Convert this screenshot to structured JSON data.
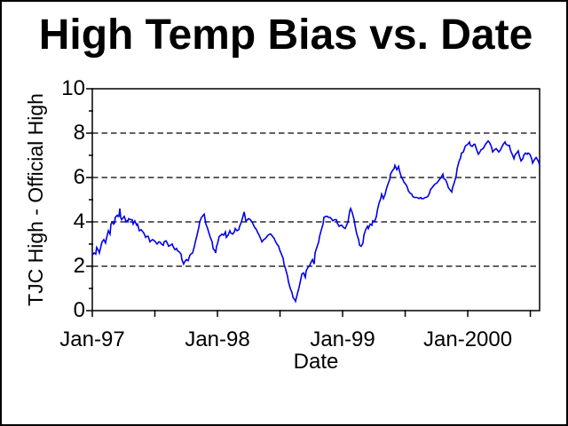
{
  "window": {
    "background": "#ffffff",
    "border_color": "#000000"
  },
  "chart_data": {
    "type": "line",
    "title": "High Temp Bias vs. Date",
    "xlabel": "Date",
    "ylabel": "TJC High - Official High",
    "x_unit": "years since Jan-1997",
    "xlim": [
      0,
      3.574
    ],
    "ylim": [
      0,
      10
    ],
    "x_ticks": [
      {
        "pos": 0,
        "label": "Jan-97"
      },
      {
        "pos": 0.5,
        "label": ""
      },
      {
        "pos": 1,
        "label": "Jan-98"
      },
      {
        "pos": 1.5,
        "label": ""
      },
      {
        "pos": 2,
        "label": "Jan-99"
      },
      {
        "pos": 2.5,
        "label": ""
      },
      {
        "pos": 3,
        "label": "Jan-2000"
      },
      {
        "pos": 3.5,
        "label": ""
      }
    ],
    "y_major_ticks": [
      0,
      2,
      4,
      6,
      8,
      10
    ],
    "y_minor_ticks": [
      1,
      3,
      5,
      7,
      9
    ],
    "gridlines_y": [
      2,
      4,
      6,
      8
    ],
    "grid_style": "horizontal dashed black",
    "legend": "none",
    "frame_color": "#000000",
    "series": [
      {
        "name": "TJC High - Official High",
        "color": "#0000E6",
        "points": [
          [
            0,
            2.5
          ],
          [
            0.014,
            2.6
          ],
          [
            0.028,
            2.55
          ],
          [
            0.035,
            2.85
          ],
          [
            0.05,
            2.7
          ],
          [
            0.057,
            2.6
          ],
          [
            0.071,
            2.95
          ],
          [
            0.078,
            3.1
          ],
          [
            0.092,
            3.2
          ],
          [
            0.106,
            3.05
          ],
          [
            0.113,
            3.25
          ],
          [
            0.128,
            3.6
          ],
          [
            0.142,
            3.45
          ],
          [
            0.149,
            3.9
          ],
          [
            0.163,
            4.0
          ],
          [
            0.17,
            3.9
          ],
          [
            0.177,
            3.95
          ],
          [
            0.184,
            4.2
          ],
          [
            0.199,
            4.3
          ],
          [
            0.206,
            4.25
          ],
          [
            0.213,
            4.25
          ],
          [
            0.22,
            4.6
          ],
          [
            0.227,
            4.2
          ],
          [
            0.234,
            4.1
          ],
          [
            0.241,
            4.15
          ],
          [
            0.248,
            4.2
          ],
          [
            0.255,
            4.25
          ],
          [
            0.27,
            4.0
          ],
          [
            0.277,
            4.05
          ],
          [
            0.284,
            4.0
          ],
          [
            0.291,
            4.15
          ],
          [
            0.305,
            4.1
          ],
          [
            0.319,
            4.1
          ],
          [
            0.326,
            3.9
          ],
          [
            0.34,
            4.05
          ],
          [
            0.355,
            3.85
          ],
          [
            0.362,
            3.9
          ],
          [
            0.376,
            3.6
          ],
          [
            0.39,
            3.65
          ],
          [
            0.397,
            3.6
          ],
          [
            0.411,
            3.5
          ],
          [
            0.426,
            3.3
          ],
          [
            0.433,
            3.35
          ],
          [
            0.447,
            3.35
          ],
          [
            0.461,
            3.1
          ],
          [
            0.468,
            3.15
          ],
          [
            0.482,
            3.2
          ],
          [
            0.496,
            3.15
          ],
          [
            0.504,
            3.1
          ],
          [
            0.518,
            3.0
          ],
          [
            0.532,
            3.1
          ],
          [
            0.539,
            3.1
          ],
          [
            0.553,
            3.0
          ],
          [
            0.567,
            2.95
          ],
          [
            0.574,
            3.1
          ],
          [
            0.589,
            3.15
          ],
          [
            0.603,
            3.0
          ],
          [
            0.61,
            2.9
          ],
          [
            0.624,
            2.95
          ],
          [
            0.638,
            3.0
          ],
          [
            0.645,
            2.9
          ],
          [
            0.66,
            2.75
          ],
          [
            0.674,
            2.8
          ],
          [
            0.681,
            2.7
          ],
          [
            0.695,
            2.65
          ],
          [
            0.709,
            2.55
          ],
          [
            0.716,
            2.3
          ],
          [
            0.73,
            2.1
          ],
          [
            0.738,
            2.2
          ],
          [
            0.752,
            2.3
          ],
          [
            0.766,
            2.25
          ],
          [
            0.78,
            2.5
          ],
          [
            0.787,
            2.55
          ],
          [
            0.801,
            2.6
          ],
          [
            0.816,
            2.9
          ],
          [
            0.823,
            3.1
          ],
          [
            0.837,
            3.4
          ],
          [
            0.851,
            3.75
          ],
          [
            0.858,
            4.0
          ],
          [
            0.872,
            4.2
          ],
          [
            0.887,
            4.3
          ],
          [
            0.894,
            4.35
          ],
          [
            0.908,
            3.9
          ],
          [
            0.922,
            3.7
          ],
          [
            0.929,
            3.55
          ],
          [
            0.943,
            3.3
          ],
          [
            0.957,
            3.1
          ],
          [
            0.965,
            2.8
          ],
          [
            0.979,
            2.7
          ],
          [
            0.986,
            2.6
          ],
          [
            0.993,
            2.9
          ],
          [
            1.0,
            3.0
          ],
          [
            1.014,
            3.35
          ],
          [
            1.028,
            3.4
          ],
          [
            1.035,
            3.45
          ],
          [
            1.05,
            3.4
          ],
          [
            1.064,
            3.55
          ],
          [
            1.071,
            3.3
          ],
          [
            1.085,
            3.4
          ],
          [
            1.099,
            3.6
          ],
          [
            1.106,
            3.5
          ],
          [
            1.121,
            3.45
          ],
          [
            1.135,
            3.55
          ],
          [
            1.142,
            3.7
          ],
          [
            1.156,
            3.6
          ],
          [
            1.17,
            3.65
          ],
          [
            1.177,
            3.8
          ],
          [
            1.191,
            4.0
          ],
          [
            1.206,
            4.3
          ],
          [
            1.213,
            4.45
          ],
          [
            1.227,
            4.05
          ],
          [
            1.241,
            4.1
          ],
          [
            1.248,
            4.15
          ],
          [
            1.262,
            4.1
          ],
          [
            1.277,
            4.0
          ],
          [
            1.284,
            3.9
          ],
          [
            1.298,
            3.75
          ],
          [
            1.312,
            3.65
          ],
          [
            1.319,
            3.55
          ],
          [
            1.333,
            3.4
          ],
          [
            1.348,
            3.2
          ],
          [
            1.355,
            3.1
          ],
          [
            1.369,
            3.2
          ],
          [
            1.383,
            3.25
          ],
          [
            1.39,
            3.3
          ],
          [
            1.404,
            3.4
          ],
          [
            1.418,
            3.45
          ],
          [
            1.426,
            3.45
          ],
          [
            1.44,
            3.35
          ],
          [
            1.454,
            3.25
          ],
          [
            1.461,
            3.15
          ],
          [
            1.475,
            3.0
          ],
          [
            1.489,
            2.9
          ],
          [
            1.496,
            2.75
          ],
          [
            1.511,
            2.55
          ],
          [
            1.525,
            2.35
          ],
          [
            1.532,
            2.1
          ],
          [
            1.546,
            1.85
          ],
          [
            1.56,
            1.55
          ],
          [
            1.567,
            1.3
          ],
          [
            1.582,
            1.0
          ],
          [
            1.596,
            0.8
          ],
          [
            1.603,
            0.6
          ],
          [
            1.617,
            0.5
          ],
          [
            1.624,
            0.42
          ],
          [
            1.638,
            0.75
          ],
          [
            1.652,
            1.05
          ],
          [
            1.667,
            1.45
          ],
          [
            1.674,
            1.65
          ],
          [
            1.688,
            1.7
          ],
          [
            1.702,
            1.5
          ],
          [
            1.709,
            1.8
          ],
          [
            1.723,
            1.95
          ],
          [
            1.738,
            2.05
          ],
          [
            1.745,
            2.15
          ],
          [
            1.759,
            2.3
          ],
          [
            1.773,
            2.1
          ],
          [
            1.78,
            2.6
          ],
          [
            1.794,
            2.85
          ],
          [
            1.809,
            3.1
          ],
          [
            1.816,
            3.35
          ],
          [
            1.83,
            3.65
          ],
          [
            1.844,
            3.9
          ],
          [
            1.851,
            4.2
          ],
          [
            1.865,
            4.25
          ],
          [
            1.879,
            4.25
          ],
          [
            1.887,
            4.2
          ],
          [
            1.901,
            4.2
          ],
          [
            1.915,
            4.1
          ],
          [
            1.922,
            4.05
          ],
          [
            1.936,
            4.1
          ],
          [
            1.95,
            4.1
          ],
          [
            1.957,
            3.95
          ],
          [
            1.972,
            3.8
          ],
          [
            1.986,
            3.85
          ],
          [
            1.993,
            3.85
          ],
          [
            2.007,
            3.75
          ],
          [
            2.021,
            3.7
          ],
          [
            2.028,
            3.8
          ],
          [
            2.043,
            4.0
          ],
          [
            2.057,
            4.5
          ],
          [
            2.064,
            4.6
          ],
          [
            2.078,
            4.4
          ],
          [
            2.092,
            4.1
          ],
          [
            2.099,
            3.85
          ],
          [
            2.113,
            3.45
          ],
          [
            2.128,
            3.2
          ],
          [
            2.135,
            2.95
          ],
          [
            2.149,
            2.9
          ],
          [
            2.163,
            3.05
          ],
          [
            2.17,
            3.4
          ],
          [
            2.184,
            3.65
          ],
          [
            2.199,
            3.8
          ],
          [
            2.206,
            3.7
          ],
          [
            2.22,
            3.9
          ],
          [
            2.234,
            3.85
          ],
          [
            2.241,
            4.05
          ],
          [
            2.255,
            4.0
          ],
          [
            2.27,
            4.25
          ],
          [
            2.277,
            4.5
          ],
          [
            2.291,
            4.85
          ],
          [
            2.305,
            5.05
          ],
          [
            2.312,
            5.25
          ],
          [
            2.326,
            5.05
          ],
          [
            2.34,
            5.25
          ],
          [
            2.348,
            5.45
          ],
          [
            2.362,
            5.7
          ],
          [
            2.376,
            5.9
          ],
          [
            2.383,
            6.15
          ],
          [
            2.397,
            6.3
          ],
          [
            2.411,
            6.4
          ],
          [
            2.418,
            6.55
          ],
          [
            2.433,
            6.35
          ],
          [
            2.447,
            6.5
          ],
          [
            2.454,
            6.3
          ],
          [
            2.468,
            6.05
          ],
          [
            2.482,
            5.9
          ],
          [
            2.489,
            5.8
          ],
          [
            2.504,
            5.7
          ],
          [
            2.518,
            5.55
          ],
          [
            2.525,
            5.4
          ],
          [
            2.539,
            5.3
          ],
          [
            2.553,
            5.25
          ],
          [
            2.56,
            5.15
          ],
          [
            2.574,
            5.1
          ],
          [
            2.589,
            5.1
          ],
          [
            2.596,
            5.1
          ],
          [
            2.61,
            5.05
          ],
          [
            2.624,
            5.1
          ],
          [
            2.631,
            5.05
          ],
          [
            2.645,
            5.05
          ],
          [
            2.66,
            5.1
          ],
          [
            2.667,
            5.1
          ],
          [
            2.681,
            5.15
          ],
          [
            2.695,
            5.3
          ],
          [
            2.702,
            5.45
          ],
          [
            2.716,
            5.55
          ],
          [
            2.73,
            5.65
          ],
          [
            2.738,
            5.7
          ],
          [
            2.752,
            5.75
          ],
          [
            2.766,
            5.85
          ],
          [
            2.773,
            5.9
          ],
          [
            2.787,
            6.0
          ],
          [
            2.801,
            6.15
          ],
          [
            2.809,
            5.95
          ],
          [
            2.823,
            5.9
          ],
          [
            2.837,
            5.7
          ],
          [
            2.844,
            5.55
          ],
          [
            2.858,
            5.45
          ],
          [
            2.872,
            5.35
          ],
          [
            2.879,
            5.55
          ],
          [
            2.894,
            5.8
          ],
          [
            2.908,
            6.1
          ],
          [
            2.915,
            6.4
          ],
          [
            2.929,
            6.7
          ],
          [
            2.943,
            6.9
          ],
          [
            2.95,
            7.1
          ],
          [
            2.965,
            7.15
          ],
          [
            2.979,
            7.4
          ],
          [
            2.986,
            7.45
          ],
          [
            3.0,
            7.5
          ],
          [
            3.014,
            7.6
          ],
          [
            3.021,
            7.45
          ],
          [
            3.035,
            7.4
          ],
          [
            3.05,
            7.5
          ],
          [
            3.057,
            7.5
          ],
          [
            3.071,
            7.25
          ],
          [
            3.085,
            7.05
          ],
          [
            3.092,
            7.1
          ],
          [
            3.106,
            7.25
          ],
          [
            3.121,
            7.3
          ],
          [
            3.128,
            7.35
          ],
          [
            3.142,
            7.5
          ],
          [
            3.156,
            7.6
          ],
          [
            3.163,
            7.65
          ],
          [
            3.177,
            7.55
          ],
          [
            3.191,
            7.35
          ],
          [
            3.199,
            7.15
          ],
          [
            3.213,
            7.25
          ],
          [
            3.227,
            7.3
          ],
          [
            3.234,
            7.25
          ],
          [
            3.248,
            7.15
          ],
          [
            3.262,
            7.25
          ],
          [
            3.27,
            7.35
          ],
          [
            3.284,
            7.5
          ],
          [
            3.298,
            7.6
          ],
          [
            3.305,
            7.5
          ],
          [
            3.319,
            7.45
          ],
          [
            3.333,
            7.45
          ],
          [
            3.34,
            7.25
          ],
          [
            3.355,
            7.05
          ],
          [
            3.369,
            6.85
          ],
          [
            3.376,
            7.0
          ],
          [
            3.39,
            7.1
          ],
          [
            3.404,
            7.2
          ],
          [
            3.411,
            7.0
          ],
          [
            3.426,
            6.75
          ],
          [
            3.44,
            6.85
          ],
          [
            3.447,
            7.0
          ],
          [
            3.461,
            7.1
          ],
          [
            3.475,
            7.05
          ],
          [
            3.482,
            7.1
          ],
          [
            3.496,
            7.05
          ],
          [
            3.511,
            6.85
          ],
          [
            3.518,
            6.65
          ],
          [
            3.532,
            6.8
          ],
          [
            3.546,
            6.9
          ],
          [
            3.553,
            6.85
          ],
          [
            3.567,
            6.7
          ],
          [
            3.574,
            6.55
          ]
        ]
      }
    ]
  }
}
